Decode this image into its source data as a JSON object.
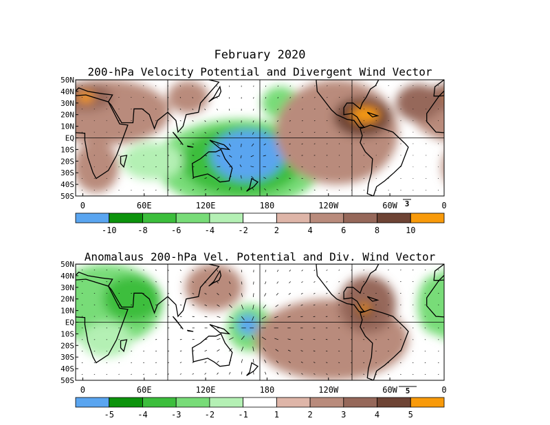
{
  "figure": {
    "title": "February 2020"
  },
  "chart_data": [
    {
      "type": "heatmap",
      "title": "200-hPa Velocity Potential and Divergent Wind Vector",
      "y_ticks": [
        "50N",
        "40N",
        "30N",
        "20N",
        "10N",
        "EQ",
        "10S",
        "20S",
        "30S",
        "40S",
        "50S"
      ],
      "x_ticks": [
        "0",
        "60E",
        "120E",
        "180",
        "120W",
        "60W",
        "0"
      ],
      "ylim": [
        -50,
        50
      ],
      "xlim": [
        0,
        360
      ],
      "grid": true,
      "vector_reference": "3",
      "colorbar": {
        "labels": [
          "-10",
          "-8",
          "-6",
          "-4",
          "-2",
          "2",
          "4",
          "6",
          "8",
          "10"
        ],
        "colors": [
          "#5aa5f0",
          "#0c930c",
          "#3cbe3c",
          "#78dc78",
          "#b4f0b4",
          "#ffffff",
          "#deb5a8",
          "#b98b7c",
          "#96685a",
          "#6e4435",
          "#f89a0a"
        ]
      },
      "blobs": [
        {
          "lon": 160,
          "lat": -22,
          "rlon": 82,
          "rlat": 38,
          "level": 3
        },
        {
          "lon": 162,
          "lat": -20,
          "rlon": 60,
          "rlat": 30,
          "level": 2
        },
        {
          "lon": 168,
          "lat": -15,
          "rlon": 36,
          "rlat": 22,
          "level": 0
        },
        {
          "lon": 200,
          "lat": 30,
          "rlon": 18,
          "rlat": 14,
          "level": 3
        },
        {
          "lon": 75,
          "lat": -20,
          "rlon": 30,
          "rlat": 16,
          "level": 4
        },
        {
          "lon": 30,
          "lat": 22,
          "rlon": 62,
          "rlat": 28,
          "level": 7
        },
        {
          "lon": 10,
          "lat": 35,
          "rlon": 26,
          "rlat": 12,
          "level": 8
        },
        {
          "lon": 10,
          "lat": 35,
          "rlon": 8,
          "rlat": 5,
          "level": 10
        },
        {
          "lon": 110,
          "lat": 35,
          "rlon": 20,
          "rlat": 14,
          "level": 7
        },
        {
          "lon": 255,
          "lat": 5,
          "rlon": 60,
          "rlat": 45,
          "level": 7
        },
        {
          "lon": 280,
          "lat": 18,
          "rlon": 28,
          "rlat": 17,
          "level": 9
        },
        {
          "lon": 283,
          "lat": 20,
          "rlon": 14,
          "rlat": 7,
          "level": 10
        },
        {
          "lon": 335,
          "lat": 30,
          "rlon": 22,
          "rlat": 16,
          "level": 8
        },
        {
          "lon": 20,
          "lat": -25,
          "rlon": 22,
          "rlat": 22,
          "level": 7
        }
      ]
    },
    {
      "type": "heatmap",
      "title": "Anomalaus 200-hPa Vel. Potential and Div. Wind Vector",
      "y_ticks": [
        "50N",
        "40N",
        "30N",
        "20N",
        "10N",
        "EQ",
        "10S",
        "20S",
        "30S",
        "40S",
        "50S"
      ],
      "x_ticks": [
        "0",
        "60E",
        "120E",
        "180",
        "120W",
        "60W",
        "0"
      ],
      "ylim": [
        -50,
        50
      ],
      "xlim": [
        0,
        360
      ],
      "grid": true,
      "vector_reference": "5",
      "colorbar": {
        "labels": [
          "-5",
          "-4",
          "-3",
          "-2",
          "-1",
          "1",
          "2",
          "3",
          "4",
          "5"
        ],
        "colors": [
          "#5aa5f0",
          "#0c930c",
          "#3cbe3c",
          "#78dc78",
          "#b4f0b4",
          "#ffffff",
          "#deb5a8",
          "#b98b7c",
          "#96685a",
          "#6e4435",
          "#f89a0a"
        ]
      },
      "blobs": [
        {
          "lon": 170,
          "lat": -5,
          "rlon": 22,
          "rlat": 20,
          "level": 3
        },
        {
          "lon": 168,
          "lat": -2,
          "rlon": 10,
          "rlat": 9,
          "level": 0
        },
        {
          "lon": 30,
          "lat": 15,
          "rlon": 55,
          "rlat": 35,
          "level": 3
        },
        {
          "lon": 55,
          "lat": 20,
          "rlon": 28,
          "rlat": 20,
          "level": 2
        },
        {
          "lon": 30,
          "lat": -15,
          "rlon": 25,
          "rlat": 15,
          "level": 4
        },
        {
          "lon": 350,
          "lat": 15,
          "rlon": 16,
          "rlat": 25,
          "level": 3
        },
        {
          "lon": 135,
          "lat": 30,
          "rlon": 28,
          "rlat": 20,
          "level": 7
        },
        {
          "lon": 250,
          "lat": -15,
          "rlon": 75,
          "rlat": 35,
          "level": 7
        },
        {
          "lon": 285,
          "lat": 15,
          "rlon": 28,
          "rlat": 25,
          "level": 8
        },
        {
          "lon": 282,
          "lat": 10,
          "rlon": 10,
          "rlat": 8,
          "level": 9
        },
        {
          "lon": 282,
          "lat": 12,
          "rlon": 5,
          "rlat": 4,
          "level": 10
        }
      ]
    }
  ]
}
